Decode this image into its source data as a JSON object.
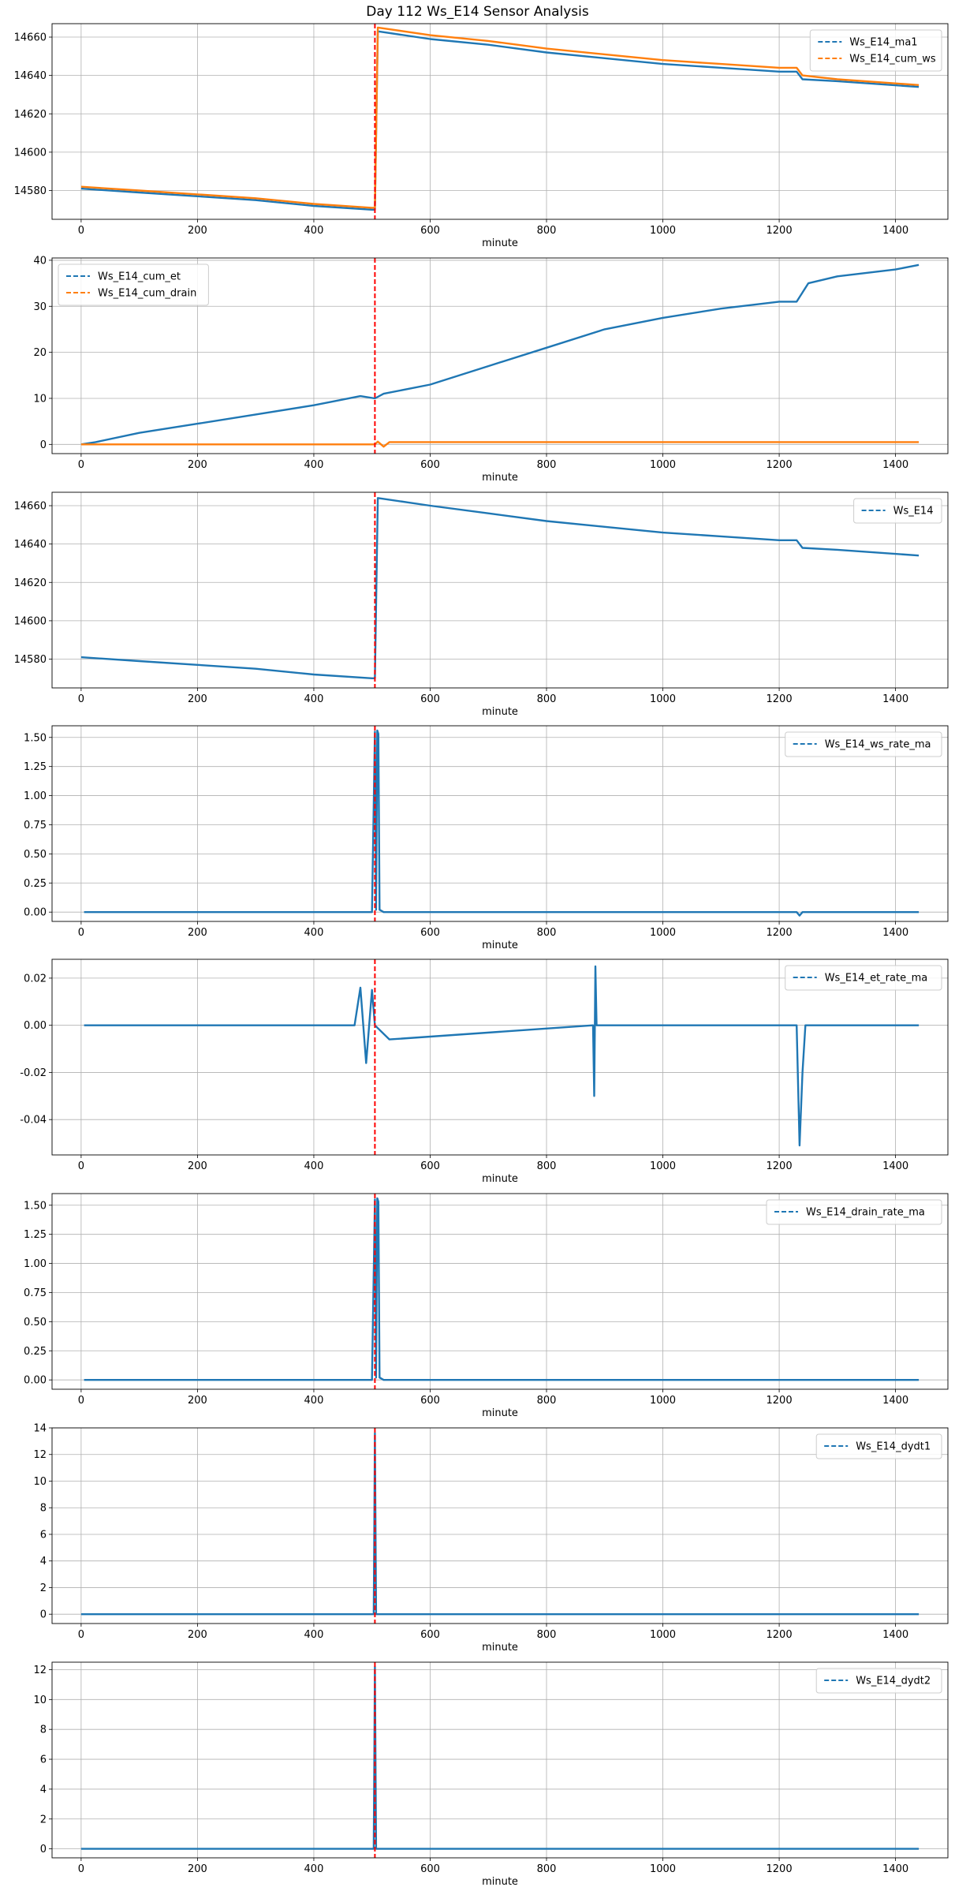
{
  "title": "Day 112 Ws_E14 Sensor Analysis",
  "colors": {
    "blue": "#1f77b4",
    "orange": "#ff7f0e",
    "event": "#ff0000",
    "grid": "#b0b0b0"
  },
  "chart_data": [
    {
      "type": "line",
      "xlabel": "minute",
      "xlim": [
        -50,
        1490
      ],
      "ylim": [
        14565,
        14667
      ],
      "xticks": [
        0,
        200,
        400,
        600,
        800,
        1000,
        1200,
        1400
      ],
      "yticks": [
        14580,
        14600,
        14620,
        14640,
        14660
      ],
      "ytick_labels": [
        "14580",
        "14600",
        "14620",
        "14640",
        "14660"
      ],
      "event_x": 505,
      "legend_loc": "upper right",
      "series": [
        {
          "name": "Ws_E14_ma1",
          "color": "blue",
          "x": [
            0,
            100,
            200,
            300,
            400,
            500,
            505,
            510,
            600,
            700,
            800,
            900,
            1000,
            1100,
            1200,
            1230,
            1240,
            1300,
            1440
          ],
          "y": [
            14581,
            14579,
            14577,
            14575,
            14572,
            14570,
            14570,
            14663,
            14659,
            14656,
            14652,
            14649,
            14646,
            14644,
            14642,
            14642,
            14638,
            14637,
            14634
          ]
        },
        {
          "name": "Ws_E14_cum_ws",
          "color": "orange",
          "x": [
            0,
            100,
            200,
            300,
            400,
            500,
            505,
            510,
            600,
            700,
            800,
            900,
            1000,
            1100,
            1200,
            1230,
            1240,
            1300,
            1440
          ],
          "y": [
            14582,
            14580,
            14578,
            14576,
            14573,
            14571,
            14571,
            14665,
            14661,
            14658,
            14654,
            14651,
            14648,
            14646,
            14644,
            14644,
            14640,
            14638,
            14635
          ]
        }
      ]
    },
    {
      "type": "line",
      "xlabel": "minute",
      "xlim": [
        -50,
        1490
      ],
      "ylim": [
        -2,
        40.5
      ],
      "xticks": [
        0,
        200,
        400,
        600,
        800,
        1000,
        1200,
        1400
      ],
      "yticks": [
        0,
        10,
        20,
        30,
        40
      ],
      "ytick_labels": [
        "0",
        "10",
        "20",
        "30",
        "40"
      ],
      "event_x": 505,
      "legend_loc": "upper left",
      "series": [
        {
          "name": "Ws_E14_cum_et",
          "color": "blue",
          "x": [
            0,
            25,
            100,
            200,
            300,
            400,
            480,
            505,
            520,
            600,
            700,
            800,
            900,
            1000,
            1100,
            1200,
            1230,
            1250,
            1300,
            1400,
            1440
          ],
          "y": [
            0,
            0.5,
            2.5,
            4.5,
            6.5,
            8.5,
            10.5,
            10,
            11,
            13,
            17,
            21,
            25,
            27.5,
            29.5,
            31,
            31,
            35,
            36.5,
            38,
            39
          ]
        },
        {
          "name": "Ws_E14_cum_drain",
          "color": "orange",
          "x": [
            0,
            505,
            510,
            520,
            530,
            1440
          ],
          "y": [
            0,
            0,
            0.6,
            -0.5,
            0.5,
            0.5
          ]
        }
      ]
    },
    {
      "type": "line",
      "xlabel": "minute",
      "xlim": [
        -50,
        1490
      ],
      "ylim": [
        14565,
        14667
      ],
      "xticks": [
        0,
        200,
        400,
        600,
        800,
        1000,
        1200,
        1400
      ],
      "yticks": [
        14580,
        14600,
        14620,
        14640,
        14660
      ],
      "ytick_labels": [
        "14580",
        "14600",
        "14620",
        "14640",
        "14660"
      ],
      "event_x": 505,
      "legend_loc": "upper right",
      "series": [
        {
          "name": "Ws_E14",
          "color": "blue",
          "x": [
            0,
            100,
            200,
            300,
            400,
            500,
            505,
            510,
            600,
            700,
            800,
            900,
            1000,
            1100,
            1200,
            1230,
            1240,
            1300,
            1440
          ],
          "y": [
            14581,
            14579,
            14577,
            14575,
            14572,
            14570,
            14570,
            14664,
            14660,
            14656,
            14652,
            14649,
            14646,
            14644,
            14642,
            14642,
            14638,
            14637,
            14634
          ]
        }
      ]
    },
    {
      "type": "line",
      "xlabel": "minute",
      "xlim": [
        -50,
        1490
      ],
      "ylim": [
        -0.08,
        1.6
      ],
      "xticks": [
        0,
        200,
        400,
        600,
        800,
        1000,
        1200,
        1400
      ],
      "yticks": [
        0,
        0.25,
        0.5,
        0.75,
        1,
        1.25,
        1.5
      ],
      "ytick_labels": [
        "0.00",
        "0.25",
        "0.50",
        "0.75",
        "1.00",
        "1.25",
        "1.50"
      ],
      "event_x": 505,
      "legend_loc": "upper right",
      "series": [
        {
          "name": "Ws_E14_ws_rate_ma",
          "color": "blue",
          "x": [
            5,
            500,
            505,
            507,
            509,
            511,
            513,
            520,
            1230,
            1235,
            1240,
            1440
          ],
          "y": [
            0,
            0,
            1.55,
            0.02,
            1.56,
            1.53,
            0.02,
            0,
            0,
            -0.03,
            0,
            0
          ]
        }
      ]
    },
    {
      "type": "line",
      "xlabel": "minute",
      "xlim": [
        -50,
        1490
      ],
      "ylim": [
        -0.055,
        0.028
      ],
      "xticks": [
        0,
        200,
        400,
        600,
        800,
        1000,
        1200,
        1400
      ],
      "yticks": [
        -0.04,
        -0.02,
        0,
        0.02
      ],
      "ytick_labels": [
        "-0.04",
        "-0.02",
        "0.00",
        "0.02"
      ],
      "event_x": 505,
      "legend_loc": "upper right",
      "series": [
        {
          "name": "Ws_E14_et_rate_ma",
          "color": "blue",
          "x": [
            5,
            470,
            480,
            490,
            500,
            505,
            530,
            880,
            882,
            884,
            886,
            1230,
            1235,
            1240,
            1245,
            1440
          ],
          "y": [
            0,
            0,
            0.016,
            -0.016,
            0.015,
            0,
            -0.006,
            0,
            -0.03,
            0.025,
            0,
            0,
            -0.051,
            -0.02,
            0,
            0
          ]
        }
      ]
    },
    {
      "type": "line",
      "xlabel": "minute",
      "xlim": [
        -50,
        1490
      ],
      "ylim": [
        -0.08,
        1.6
      ],
      "xticks": [
        0,
        200,
        400,
        600,
        800,
        1000,
        1200,
        1400
      ],
      "yticks": [
        0,
        0.25,
        0.5,
        0.75,
        1,
        1.25,
        1.5
      ],
      "ytick_labels": [
        "0.00",
        "0.25",
        "0.50",
        "0.75",
        "1.00",
        "1.25",
        "1.50"
      ],
      "event_x": 505,
      "legend_loc": "upper right",
      "series": [
        {
          "name": "Ws_E14_drain_rate_ma",
          "color": "blue",
          "x": [
            5,
            500,
            505,
            507,
            509,
            511,
            513,
            520,
            530,
            1440
          ],
          "y": [
            0,
            0,
            1.55,
            0.02,
            1.56,
            1.53,
            0.02,
            0,
            0,
            0
          ]
        }
      ]
    },
    {
      "type": "line",
      "xlabel": "minute",
      "xlim": [
        -50,
        1490
      ],
      "ylim": [
        -0.7,
        14
      ],
      "xticks": [
        0,
        200,
        400,
        600,
        800,
        1000,
        1200,
        1400
      ],
      "yticks": [
        0,
        2,
        4,
        6,
        8,
        10,
        12,
        14
      ],
      "ytick_labels": [
        "0",
        "2",
        "4",
        "6",
        "8",
        "10",
        "12",
        "14"
      ],
      "event_x": 505,
      "legend_loc": "upper right",
      "series": [
        {
          "name": "Ws_E14_dydt1",
          "color": "blue",
          "x": [
            0,
            503,
            505,
            507,
            510,
            1440
          ],
          "y": [
            0,
            0,
            13.6,
            0,
            0,
            0
          ]
        }
      ]
    },
    {
      "type": "line",
      "xlabel": "minute",
      "xlim": [
        -50,
        1490
      ],
      "ylim": [
        -0.6,
        12.5
      ],
      "xticks": [
        0,
        200,
        400,
        600,
        800,
        1000,
        1200,
        1400
      ],
      "yticks": [
        0,
        2,
        4,
        6,
        8,
        10,
        12
      ],
      "ytick_labels": [
        "0",
        "2",
        "4",
        "6",
        "8",
        "10",
        "12"
      ],
      "event_x": 505,
      "legend_loc": "upper right",
      "series": [
        {
          "name": "Ws_E14_dydt2",
          "color": "blue",
          "x": [
            0,
            503,
            505,
            507,
            510,
            1440
          ],
          "y": [
            0,
            0,
            12.2,
            0,
            0,
            0
          ]
        }
      ]
    }
  ]
}
